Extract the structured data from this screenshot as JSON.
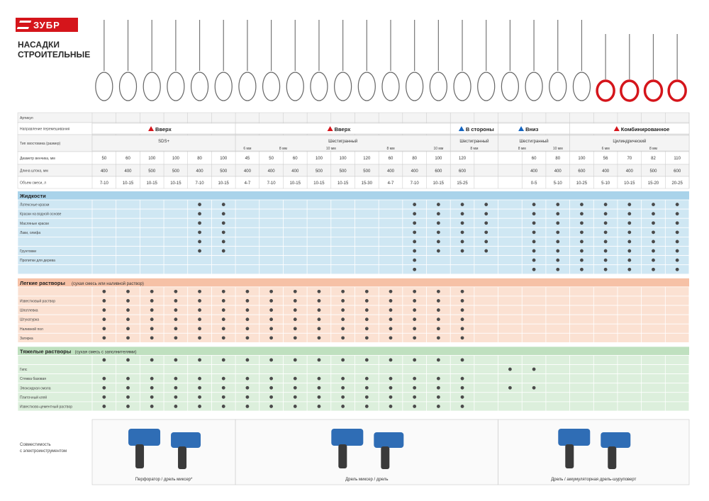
{
  "brand": {
    "name": "ЗУБР",
    "accent": "#d5151b"
  },
  "title_lines": [
    "НАСАДКИ",
    "СТРОИТЕЛЬНЫЕ"
  ],
  "pictures_label": "",
  "columns": 25,
  "tool_groups": [
    {
      "from": 0,
      "to": 5,
      "kind": "wire"
    },
    {
      "from": 6,
      "to": 19,
      "kind": "wire"
    },
    {
      "from": 20,
      "to": 20,
      "kind": "wire"
    },
    {
      "from": 21,
      "to": 24,
      "kind": "red"
    }
  ],
  "articles": [
    "",
    "",
    "",
    "",
    "",
    "",
    "",
    "",
    "",
    "",
    "",
    "",
    "",
    "",
    "",
    "",
    "",
    "",
    "",
    "",
    "",
    "",
    "",
    "",
    ""
  ],
  "header_rows": [
    {
      "label": "Артикул"
    },
    {
      "label": "Направление перемешивания"
    },
    {
      "label": "Тип хвостовика (размер)"
    },
    {
      "label": "Диаметр венчика, мм"
    },
    {
      "label": "Длина штока, мм"
    },
    {
      "label": "Объем смеси, л"
    }
  ],
  "directions": [
    {
      "from": 0,
      "to": 5,
      "text": "Вверх",
      "icon": "up-arrow",
      "color": "#d5151b"
    },
    {
      "from": 6,
      "to": 14,
      "text": "Вверх",
      "icon": "up-arrow",
      "color": "#d5151b"
    },
    {
      "from": 15,
      "to": 16,
      "text": "В стороны",
      "icon": "left-right-arrow",
      "color": "#1565c0"
    },
    {
      "from": 17,
      "to": 19,
      "text": "Вниз",
      "icon": "down-arrow",
      "color": "#1565c0"
    },
    {
      "from": 20,
      "to": 24,
      "text": "Комбинированное",
      "icon": "up-down-arrow",
      "color": "#d5151b"
    }
  ],
  "shanks": [
    {
      "from": 0,
      "to": 5,
      "text": "SDS+",
      "sub": []
    },
    {
      "from": 6,
      "to": 14,
      "text": "Шестигранный",
      "sub": [
        {
          "from": 6,
          "to": 6,
          "text": "6 мм"
        },
        {
          "from": 7,
          "to": 8,
          "text": "8 мм"
        },
        {
          "from": 9,
          "to": 10,
          "text": "10 мм"
        },
        {
          "from": 11,
          "to": 13,
          "text": "8 мм"
        },
        {
          "from": 14,
          "to": 14,
          "text": "10 мм"
        }
      ]
    },
    {
      "from": 15,
      "to": 16,
      "text": "Шестигранный",
      "sub": [
        {
          "from": 15,
          "to": 16,
          "text": "8 мм"
        }
      ]
    },
    {
      "from": 17,
      "to": 19,
      "text": "Шестигранный",
      "sub": [
        {
          "from": 17,
          "to": 18,
          "text": "8 мм"
        },
        {
          "from": 19,
          "to": 19,
          "text": "10 мм"
        }
      ]
    },
    {
      "from": 20,
      "to": 24,
      "text": "Цилиндрический",
      "sub": [
        {
          "from": 20,
          "to": 22,
          "text": "6 мм"
        },
        {
          "from": 23,
          "to": 23,
          "text": "8 мм"
        }
      ]
    }
  ],
  "diameters": [
    "50",
    "60",
    "100",
    "100",
    "80",
    "100",
    "45",
    "50",
    "60",
    "100",
    "100",
    "120",
    "60",
    "80",
    "100",
    "120",
    "",
    "",
    "60",
    "80",
    "100",
    "56",
    "70",
    "82",
    "110"
  ],
  "lengths": [
    "400",
    "400",
    "500",
    "500",
    "400",
    "500",
    "400",
    "400",
    "400",
    "500",
    "500",
    "500",
    "400",
    "400",
    "600",
    "600",
    "",
    "",
    "400",
    "400",
    "600",
    "400",
    "400",
    "500",
    "600"
  ],
  "volumes": [
    "7-10",
    "10-15",
    "10-15",
    "10-15",
    "7-10",
    "10-15",
    "4-7",
    "7-10",
    "10-15",
    "10-15",
    "10-15",
    "15-30",
    "4-7",
    "7-10",
    "10-15",
    "15-25",
    "",
    "",
    "0-5",
    "5-10",
    "10-25",
    "5-10",
    "10-15",
    "15-20",
    "20-25"
  ],
  "sections": [
    {
      "title": "Жидкости",
      "subtitle": "",
      "color": "#cfe7f3",
      "head": "#a9d3ea",
      "rows": [
        {
          "label": "Латексные краски",
          "dots": [
            4,
            5,
            13,
            14,
            15,
            16,
            18,
            19,
            20,
            21,
            22,
            23,
            24
          ]
        },
        {
          "label": "Краски на водной основе",
          "dots": [
            4,
            5,
            13,
            14,
            15,
            16,
            18,
            19,
            20,
            21,
            22,
            23,
            24
          ]
        },
        {
          "label": "Масляные краски",
          "dots": [
            4,
            5,
            13,
            14,
            15,
            16,
            18,
            19,
            20,
            21,
            22,
            23,
            24
          ]
        },
        {
          "label": "Лаки, олифа",
          "dots": [
            4,
            5,
            13,
            14,
            15,
            16,
            18,
            19,
            20,
            21,
            22,
            23,
            24
          ]
        },
        {
          "label": "",
          "dots": [
            4,
            5,
            13,
            14,
            15,
            16,
            18,
            19,
            20,
            21,
            22,
            23,
            24
          ]
        },
        {
          "label": "Грунтовки",
          "dots": [
            4,
            5,
            13,
            14,
            15,
            16,
            18,
            19,
            20,
            21,
            22,
            23,
            24
          ]
        },
        {
          "label": "Пропитки для дерева",
          "dots": [
            13,
            18,
            19,
            20,
            21,
            22,
            23,
            24
          ]
        },
        {
          "label": "",
          "dots": [
            13,
            18,
            19,
            20,
            21,
            22,
            23,
            24
          ]
        }
      ]
    },
    {
      "title": "Легкие растворы",
      "subtitle": "(сухая смесь или наливной раствор)",
      "color": "#fbe1d2",
      "head": "#f6c1a6",
      "rows": [
        {
          "label": "",
          "dots": [
            0,
            1,
            2,
            3,
            4,
            5,
            6,
            7,
            8,
            9,
            10,
            11,
            12,
            13,
            14,
            15
          ]
        },
        {
          "label": "Известковый раствор",
          "dots": [
            0,
            1,
            2,
            3,
            4,
            5,
            6,
            7,
            8,
            9,
            10,
            11,
            12,
            13,
            14,
            15
          ]
        },
        {
          "label": "Шпатлевка",
          "dots": [
            0,
            1,
            2,
            3,
            4,
            5,
            6,
            7,
            8,
            9,
            10,
            11,
            12,
            13,
            14,
            15
          ]
        },
        {
          "label": "Штукатурка",
          "dots": [
            0,
            1,
            2,
            3,
            4,
            5,
            6,
            7,
            8,
            9,
            10,
            11,
            12,
            13,
            14,
            15
          ]
        },
        {
          "label": "Наливной пол",
          "dots": [
            0,
            1,
            2,
            3,
            4,
            5,
            6,
            7,
            8,
            9,
            10,
            11,
            12,
            13,
            14,
            15
          ]
        },
        {
          "label": "Затирка",
          "dots": [
            0,
            1,
            2,
            3,
            4,
            5,
            6,
            7,
            8,
            9,
            10,
            11,
            12,
            13,
            14,
            15
          ]
        }
      ]
    },
    {
      "title": "Тяжелые растворы",
      "subtitle": "(сухая смесь с заполнителями)",
      "color": "#dcefdc",
      "head": "#bfe0bf",
      "rows": [
        {
          "label": "",
          "dots": [
            0,
            1,
            2,
            3,
            4,
            5,
            6,
            7,
            8,
            9,
            10,
            11,
            12,
            13,
            14,
            15
          ]
        },
        {
          "label": "Гипс",
          "dots": [
            17,
            18
          ]
        },
        {
          "label": "Стяжка базовая",
          "dots": [
            0,
            1,
            2,
            3,
            4,
            5,
            6,
            7,
            8,
            9,
            10,
            11,
            12,
            13,
            14,
            15
          ]
        },
        {
          "label": "Эпоксидная смола",
          "dots": [
            0,
            1,
            2,
            3,
            4,
            5,
            6,
            7,
            8,
            9,
            10,
            11,
            12,
            13,
            14,
            15,
            17,
            18
          ]
        },
        {
          "label": "Плиточный клей",
          "dots": [
            0,
            1,
            2,
            3,
            4,
            5,
            6,
            7,
            8,
            9,
            10,
            11,
            12,
            13,
            14,
            15
          ]
        },
        {
          "label": "Известково-цементный раствор",
          "dots": [
            0,
            1,
            2,
            3,
            4,
            5,
            6,
            7,
            8,
            9,
            10,
            11,
            12,
            13,
            14,
            15
          ]
        }
      ]
    }
  ],
  "compat_label_lines": [
    "Совместимость",
    "с электроинструментом"
  ],
  "compat_groups": [
    {
      "from": 0,
      "to": 5,
      "text": "Перфоратор / дрель миксер*"
    },
    {
      "from": 6,
      "to": 16,
      "text": "Дрель миксер / дрель"
    },
    {
      "from": 17,
      "to": 24,
      "text": "Дрель / аккумуляторная дрель-шуруповерт"
    }
  ],
  "footnote": "",
  "colors": {
    "blue_tool": "#2f6db5",
    "red_mixer": "#d5151b",
    "grid": "#c9c9c9",
    "dot": "#4a4a4a"
  }
}
